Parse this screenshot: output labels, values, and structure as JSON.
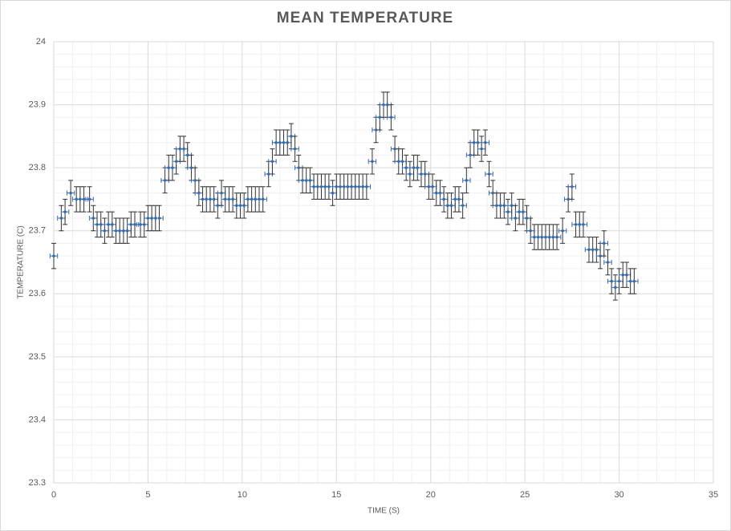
{
  "chart_data": {
    "type": "scatter",
    "title": "MEAN TEMPERATURE",
    "x_label": "TIME (S)",
    "y_label": "TEMPERATURE (C)",
    "xlim": [
      0,
      35
    ],
    "xticks": [
      0,
      5,
      10,
      15,
      20,
      25,
      30,
      35
    ],
    "ylim": [
      23.3,
      24
    ],
    "yticks": [
      23.3,
      23.4,
      23.5,
      23.6,
      23.7,
      23.8,
      23.9,
      24
    ],
    "grid": true,
    "series": [
      {
        "color": "#3b6aa8",
        "xerr": 0.2,
        "yerr": 0.02,
        "x": [
          0,
          0.4,
          0.6,
          0.9,
          1.2,
          1.4,
          1.6,
          1.9,
          2.1,
          2.3,
          2.5,
          2.7,
          2.9,
          3.1,
          3.3,
          3.5,
          3.7,
          3.9,
          4.1,
          4.3,
          4.6,
          4.8,
          5.0,
          5.2,
          5.4,
          5.6,
          5.9,
          6.1,
          6.3,
          6.5,
          6.7,
          6.9,
          7.1,
          7.3,
          7.5,
          7.7,
          7.9,
          8.1,
          8.3,
          8.5,
          8.7,
          8.9,
          9.1,
          9.3,
          9.5,
          9.7,
          9.9,
          10.1,
          10.3,
          10.5,
          10.7,
          10.9,
          11.1,
          11.4,
          11.6,
          11.8,
          12.0,
          12.2,
          12.4,
          12.6,
          12.8,
          13.0,
          13.2,
          13.4,
          13.6,
          13.8,
          14.0,
          14.2,
          14.4,
          14.6,
          14.8,
          15.0,
          15.2,
          15.4,
          15.6,
          15.8,
          16.0,
          16.2,
          16.4,
          16.6,
          16.9,
          17.1,
          17.3,
          17.5,
          17.7,
          17.9,
          18.1,
          18.3,
          18.5,
          18.7,
          18.9,
          19.1,
          19.3,
          19.5,
          19.7,
          19.9,
          20.1,
          20.3,
          20.5,
          20.7,
          20.9,
          21.1,
          21.3,
          21.5,
          21.7,
          21.9,
          22.1,
          22.3,
          22.5,
          22.7,
          22.9,
          23.1,
          23.3,
          23.5,
          23.7,
          23.9,
          24.1,
          24.3,
          24.5,
          24.7,
          24.9,
          25.1,
          25.3,
          25.5,
          25.7,
          25.9,
          26.1,
          26.3,
          26.5,
          26.7,
          27.0,
          27.3,
          27.5,
          27.7,
          27.9,
          28.1,
          28.4,
          28.6,
          28.8,
          29.0,
          29.2,
          29.4,
          29.6,
          29.8,
          30.0,
          30.2,
          30.4,
          30.6,
          30.8
        ],
        "values": [
          23.66,
          23.72,
          23.73,
          23.76,
          23.75,
          23.75,
          23.75,
          23.75,
          23.72,
          23.71,
          23.71,
          23.7,
          23.71,
          23.71,
          23.7,
          23.7,
          23.7,
          23.7,
          23.71,
          23.71,
          23.71,
          23.71,
          23.72,
          23.72,
          23.72,
          23.72,
          23.78,
          23.8,
          23.8,
          23.81,
          23.83,
          23.83,
          23.82,
          23.8,
          23.78,
          23.76,
          23.75,
          23.75,
          23.75,
          23.75,
          23.74,
          23.76,
          23.75,
          23.75,
          23.75,
          23.74,
          23.74,
          23.74,
          23.75,
          23.75,
          23.75,
          23.75,
          23.75,
          23.79,
          23.81,
          23.84,
          23.84,
          23.84,
          23.84,
          23.85,
          23.83,
          23.8,
          23.78,
          23.78,
          23.78,
          23.77,
          23.77,
          23.77,
          23.77,
          23.77,
          23.76,
          23.77,
          23.77,
          23.77,
          23.77,
          23.77,
          23.77,
          23.77,
          23.77,
          23.77,
          23.81,
          23.86,
          23.88,
          23.9,
          23.9,
          23.88,
          23.83,
          23.81,
          23.81,
          23.8,
          23.79,
          23.8,
          23.8,
          23.79,
          23.79,
          23.77,
          23.77,
          23.76,
          23.76,
          23.75,
          23.74,
          23.74,
          23.75,
          23.75,
          23.74,
          23.78,
          23.82,
          23.84,
          23.84,
          23.83,
          23.84,
          23.79,
          23.76,
          23.74,
          23.74,
          23.74,
          23.73,
          23.74,
          23.72,
          23.73,
          23.73,
          23.72,
          23.7,
          23.69,
          23.69,
          23.69,
          23.69,
          23.69,
          23.69,
          23.69,
          23.7,
          23.75,
          23.77,
          23.71,
          23.71,
          23.71,
          23.67,
          23.67,
          23.67,
          23.66,
          23.68,
          23.65,
          23.62,
          23.61,
          23.62,
          23.63,
          23.63,
          23.62,
          23.62
        ]
      }
    ]
  }
}
